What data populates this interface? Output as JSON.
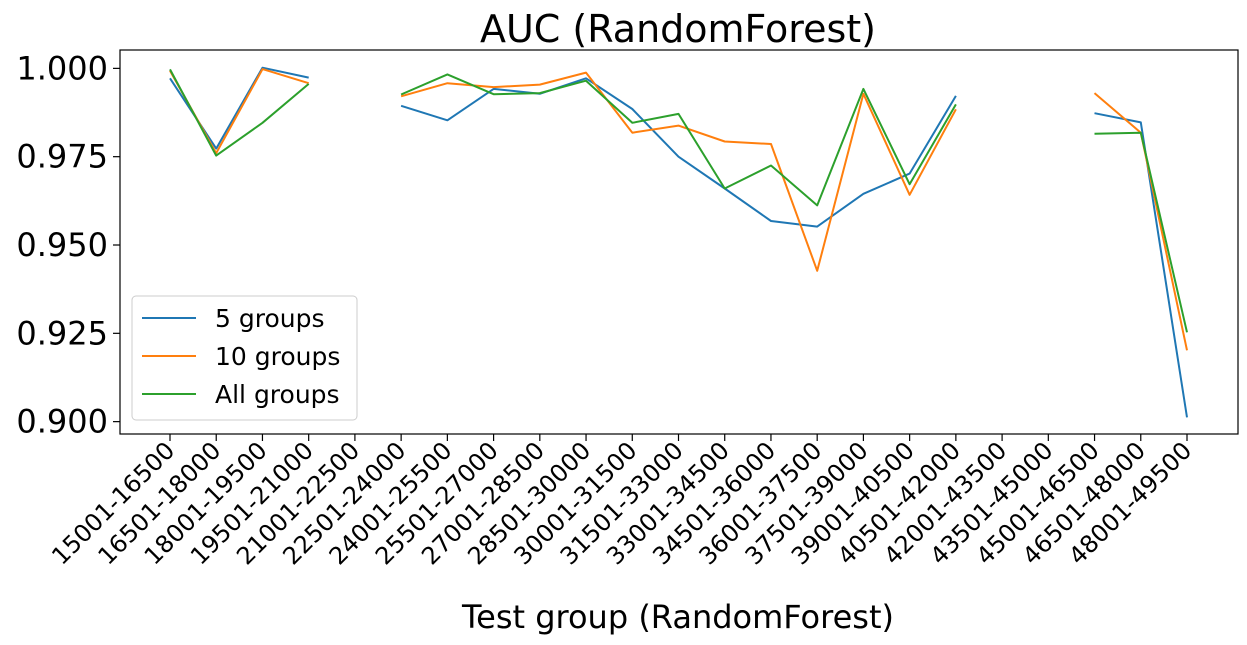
{
  "chart_data": {
    "type": "line",
    "title": "AUC (RandomForest)",
    "xlabel": "Test group (RandomForest)",
    "ylabel": "",
    "ylim": [
      0.8965,
      1.0052
    ],
    "yticks": [
      "0.900",
      "0.925",
      "0.950",
      "0.975",
      "1.000"
    ],
    "ytick_values": [
      0.9,
      0.925,
      0.95,
      0.975,
      1.0
    ],
    "grid": false,
    "legend_position": "lower-left",
    "categories": [
      "15001-16500",
      "16501-18000",
      "18001-19500",
      "19501-21000",
      "21001-22500",
      "22501-24000",
      "24001-25500",
      "25501-27000",
      "27001-28500",
      "28501-30000",
      "30001-31500",
      "31501-33000",
      "33001-34500",
      "34501-36000",
      "36001-37500",
      "37501-39000",
      "39001-40500",
      "40501-42000",
      "42001-43500",
      "43501-45000",
      "45001-46500",
      "46501-48000",
      "48001-49500"
    ],
    "series": [
      {
        "name": "5 groups",
        "color": "#1f77b4",
        "values": [
          0.9972,
          0.9773,
          1.0002,
          0.9974,
          null,
          0.9894,
          0.9853,
          0.9942,
          0.9928,
          0.9972,
          0.9885,
          0.975,
          0.966,
          0.9568,
          0.9552,
          0.9645,
          0.9702,
          0.9922,
          null,
          null,
          0.9873,
          0.9847,
          0.9012
        ]
      },
      {
        "name": "10 groups",
        "color": "#ff7f0e",
        "values": [
          0.9993,
          0.976,
          0.9998,
          0.9958,
          null,
          0.9921,
          0.9958,
          0.9947,
          0.9954,
          0.9988,
          0.9818,
          0.9838,
          0.9793,
          0.9786,
          0.9427,
          0.9928,
          0.9642,
          0.9884,
          null,
          null,
          0.993,
          0.9818,
          0.9202
        ]
      },
      {
        "name": "All groups",
        "color": "#2ca02c",
        "values": [
          0.9997,
          0.9753,
          0.9846,
          0.9956,
          null,
          0.9926,
          0.9983,
          0.9927,
          0.993,
          0.9965,
          0.9846,
          0.9871,
          0.966,
          0.9725,
          0.9612,
          0.9942,
          0.9672,
          0.9898,
          null,
          null,
          0.9815,
          0.9818,
          0.9253
        ]
      }
    ]
  }
}
